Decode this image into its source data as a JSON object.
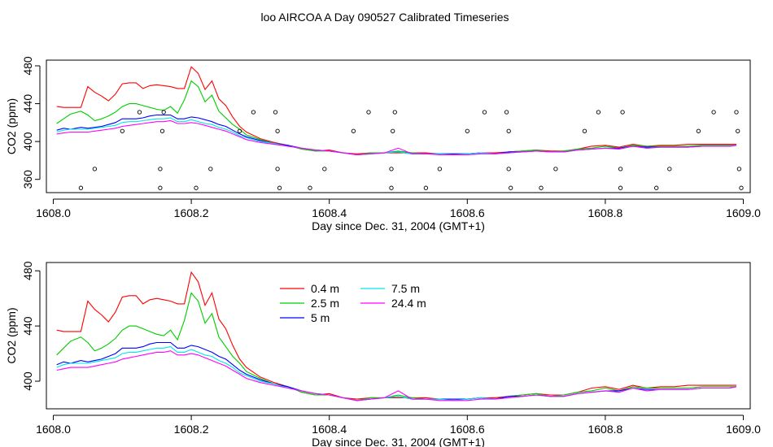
{
  "title": "loo AIRCOA A  Day 090527  Calibrated Timeseries",
  "colors": {
    "0.4 m": "#ff0000",
    "2.5 m": "#00cd00",
    "5 m": "#0000ff",
    "7.5 m": "#00e5ee",
    "24.4 m": "#ff00ff"
  },
  "chart_data": [
    {
      "type": "line",
      "xlabel": "Day since Dec. 31, 2004 (GMT+1)",
      "ylabel": "CO2 (ppm)",
      "xlim": [
        1607.99,
        1609.01
      ],
      "ylim": [
        346,
        486
      ],
      "xticks": [
        1608.0,
        1608.2,
        1608.4,
        1608.6,
        1608.8,
        1609.0
      ],
      "xtick_labels": [
        "1608.0",
        "1608.2",
        "1608.4",
        "1608.6",
        "1608.8",
        "1609.0"
      ],
      "yticks": [
        360,
        400,
        440,
        480
      ],
      "ytick_labels": [
        "360",
        "400",
        "440",
        "480"
      ],
      "legend": null,
      "series": [
        {
          "key": "0.4 m",
          "x": [
            1608.005,
            1608.015,
            1608.025,
            1608.04,
            1608.05,
            1608.06,
            1608.07,
            1608.08,
            1608.09,
            1608.1,
            1608.11,
            1608.12,
            1608.13,
            1608.14,
            1608.15,
            1608.16,
            1608.17,
            1608.18,
            1608.19,
            1608.2,
            1608.21,
            1608.22,
            1608.23,
            1608.24,
            1608.25,
            1608.26,
            1608.27,
            1608.28,
            1608.3,
            1608.32,
            1608.34,
            1608.36,
            1608.38,
            1608.4,
            1608.42,
            1608.44,
            1608.46,
            1608.48,
            1608.5,
            1608.52,
            1608.54,
            1608.56,
            1608.58,
            1608.6,
            1608.62,
            1608.64,
            1608.66,
            1608.68,
            1608.7,
            1608.72,
            1608.74,
            1608.76,
            1608.78,
            1608.8,
            1608.82,
            1608.84,
            1608.86,
            1608.88,
            1608.9,
            1608.92,
            1608.94,
            1608.96,
            1608.98,
            1608.99
          ],
          "y": [
            437,
            436,
            436,
            436,
            458,
            452,
            448,
            443,
            450,
            461,
            462,
            462,
            456,
            459,
            460,
            459,
            458,
            456,
            456,
            479,
            472,
            455,
            464,
            445,
            438,
            426,
            416,
            410,
            403,
            399,
            396,
            392,
            390,
            391,
            388,
            387,
            388,
            388,
            388,
            388,
            388,
            387,
            387,
            387,
            388,
            388,
            389,
            390,
            391,
            390,
            390,
            392,
            395,
            396,
            394,
            397,
            395,
            396,
            396,
            397,
            397,
            397,
            397,
            397
          ]
        },
        {
          "key": "2.5 m",
          "x": [
            1608.005,
            1608.015,
            1608.025,
            1608.04,
            1608.05,
            1608.06,
            1608.07,
            1608.08,
            1608.09,
            1608.1,
            1608.11,
            1608.12,
            1608.13,
            1608.14,
            1608.15,
            1608.16,
            1608.17,
            1608.18,
            1608.19,
            1608.2,
            1608.21,
            1608.22,
            1608.23,
            1608.24,
            1608.25,
            1608.26,
            1608.27,
            1608.28,
            1608.3,
            1608.32,
            1608.34,
            1608.36,
            1608.38,
            1608.4,
            1608.42,
            1608.44,
            1608.46,
            1608.48,
            1608.5,
            1608.52,
            1608.54,
            1608.56,
            1608.58,
            1608.6,
            1608.62,
            1608.64,
            1608.66,
            1608.68,
            1608.7,
            1608.72,
            1608.74,
            1608.76,
            1608.78,
            1608.8,
            1608.82,
            1608.84,
            1608.86,
            1608.88,
            1608.9,
            1608.92,
            1608.94,
            1608.96,
            1608.98,
            1608.99
          ],
          "y": [
            419,
            424,
            429,
            432,
            428,
            422,
            424,
            427,
            431,
            437,
            440,
            440,
            438,
            436,
            434,
            433,
            437,
            430,
            444,
            464,
            458,
            442,
            449,
            432,
            425,
            418,
            413,
            407,
            402,
            398,
            396,
            392,
            390,
            390,
            388,
            386,
            388,
            388,
            390,
            388,
            387,
            387,
            386,
            387,
            388,
            387,
            389,
            390,
            391,
            389,
            390,
            392,
            393,
            395,
            393,
            396,
            395,
            395,
            395,
            395,
            396,
            396,
            396,
            396
          ]
        },
        {
          "key": "5 m",
          "x": [
            1608.005,
            1608.015,
            1608.025,
            1608.04,
            1608.05,
            1608.06,
            1608.07,
            1608.08,
            1608.09,
            1608.1,
            1608.11,
            1608.12,
            1608.13,
            1608.14,
            1608.15,
            1608.16,
            1608.17,
            1608.18,
            1608.19,
            1608.2,
            1608.21,
            1608.22,
            1608.23,
            1608.24,
            1608.25,
            1608.26,
            1608.27,
            1608.28,
            1608.3,
            1608.32,
            1608.34,
            1608.36,
            1608.38,
            1608.4,
            1608.42,
            1608.44,
            1608.46,
            1608.48,
            1608.5,
            1608.52,
            1608.54,
            1608.56,
            1608.58,
            1608.6,
            1608.62,
            1608.64,
            1608.66,
            1608.68,
            1608.7,
            1608.72,
            1608.74,
            1608.76,
            1608.78,
            1608.8,
            1608.82,
            1608.84,
            1608.86,
            1608.88,
            1608.9,
            1608.92,
            1608.94,
            1608.96,
            1608.98,
            1608.99
          ],
          "y": [
            412,
            414,
            413,
            415,
            414,
            415,
            416,
            418,
            420,
            424,
            424,
            424,
            425,
            427,
            428,
            428,
            428,
            424,
            424,
            426,
            425,
            423,
            421,
            418,
            416,
            412,
            408,
            405,
            401,
            398,
            396,
            393,
            391,
            390,
            388,
            386,
            387,
            388,
            389,
            387,
            387,
            387,
            387,
            387,
            388,
            387,
            389,
            389,
            390,
            389,
            389,
            391,
            392,
            393,
            393,
            395,
            394,
            394,
            394,
            394,
            395,
            395,
            395,
            396
          ]
        },
        {
          "key": "7.5 m",
          "x": [
            1608.005,
            1608.015,
            1608.025,
            1608.04,
            1608.05,
            1608.06,
            1608.07,
            1608.08,
            1608.09,
            1608.1,
            1608.11,
            1608.12,
            1608.13,
            1608.14,
            1608.15,
            1608.16,
            1608.17,
            1608.18,
            1608.19,
            1608.2,
            1608.21,
            1608.22,
            1608.23,
            1608.24,
            1608.25,
            1608.26,
            1608.27,
            1608.28,
            1608.3,
            1608.32,
            1608.34,
            1608.36,
            1608.38,
            1608.4,
            1608.42,
            1608.44,
            1608.46,
            1608.48,
            1608.5,
            1608.52,
            1608.54,
            1608.56,
            1608.58,
            1608.6,
            1608.62,
            1608.64,
            1608.66,
            1608.68,
            1608.7,
            1608.72,
            1608.74,
            1608.76,
            1608.78,
            1608.8,
            1608.82,
            1608.84,
            1608.86,
            1608.88,
            1608.9,
            1608.92,
            1608.94,
            1608.96,
            1608.98,
            1608.99
          ],
          "y": [
            410,
            412,
            413,
            413,
            413,
            414,
            415,
            416,
            417,
            420,
            421,
            421,
            422,
            423,
            424,
            424,
            425,
            421,
            421,
            423,
            421,
            419,
            418,
            415,
            413,
            410,
            406,
            404,
            400,
            398,
            395,
            393,
            391,
            390,
            388,
            386,
            387,
            388,
            389,
            387,
            387,
            387,
            386,
            387,
            388,
            387,
            388,
            389,
            390,
            389,
            389,
            391,
            392,
            393,
            392,
            395,
            393,
            394,
            394,
            394,
            395,
            395,
            395,
            396
          ]
        },
        {
          "key": "24.4 m",
          "x": [
            1608.005,
            1608.015,
            1608.025,
            1608.04,
            1608.05,
            1608.06,
            1608.07,
            1608.08,
            1608.09,
            1608.1,
            1608.11,
            1608.12,
            1608.13,
            1608.14,
            1608.15,
            1608.16,
            1608.17,
            1608.18,
            1608.19,
            1608.2,
            1608.21,
            1608.22,
            1608.23,
            1608.24,
            1608.25,
            1608.26,
            1608.27,
            1608.28,
            1608.3,
            1608.32,
            1608.34,
            1608.36,
            1608.38,
            1608.4,
            1608.42,
            1608.44,
            1608.46,
            1608.48,
            1608.5,
            1608.52,
            1608.54,
            1608.56,
            1608.58,
            1608.6,
            1608.62,
            1608.64,
            1608.66,
            1608.68,
            1608.7,
            1608.72,
            1608.74,
            1608.76,
            1608.78,
            1608.8,
            1608.82,
            1608.84,
            1608.86,
            1608.88,
            1608.9,
            1608.92,
            1608.94,
            1608.96,
            1608.98,
            1608.99
          ],
          "y": [
            408,
            409,
            410,
            410,
            410,
            411,
            412,
            413,
            414,
            416,
            417,
            418,
            419,
            420,
            421,
            421,
            422,
            419,
            419,
            420,
            419,
            417,
            415,
            413,
            411,
            408,
            405,
            402,
            399,
            397,
            395,
            393,
            391,
            390,
            388,
            386,
            387,
            388,
            393,
            387,
            387,
            386,
            386,
            386,
            387,
            387,
            388,
            389,
            390,
            389,
            389,
            391,
            392,
            393,
            392,
            395,
            393,
            394,
            394,
            394,
            395,
            395,
            395,
            396
          ]
        }
      ],
      "points": [
        {
          "x": 1608.04,
          "y": 351
        },
        {
          "x": 1608.06,
          "y": 371
        },
        {
          "x": 1608.1,
          "y": 411
        },
        {
          "x": 1608.125,
          "y": 431
        },
        {
          "x": 1608.155,
          "y": 351
        },
        {
          "x": 1608.155,
          "y": 371
        },
        {
          "x": 1608.158,
          "y": 411
        },
        {
          "x": 1608.16,
          "y": 431
        },
        {
          "x": 1608.207,
          "y": 351
        },
        {
          "x": 1608.228,
          "y": 371
        },
        {
          "x": 1608.27,
          "y": 411
        },
        {
          "x": 1608.29,
          "y": 431
        },
        {
          "x": 1608.322,
          "y": 431
        },
        {
          "x": 1608.325,
          "y": 411
        },
        {
          "x": 1608.325,
          "y": 371
        },
        {
          "x": 1608.328,
          "y": 351
        },
        {
          "x": 1608.372,
          "y": 351
        },
        {
          "x": 1608.393,
          "y": 371
        },
        {
          "x": 1608.435,
          "y": 411
        },
        {
          "x": 1608.457,
          "y": 431
        },
        {
          "x": 1608.49,
          "y": 351
        },
        {
          "x": 1608.49,
          "y": 371
        },
        {
          "x": 1608.492,
          "y": 411
        },
        {
          "x": 1608.495,
          "y": 431
        },
        {
          "x": 1608.54,
          "y": 351
        },
        {
          "x": 1608.56,
          "y": 371
        },
        {
          "x": 1608.6,
          "y": 411
        },
        {
          "x": 1608.625,
          "y": 431
        },
        {
          "x": 1608.657,
          "y": 431
        },
        {
          "x": 1608.66,
          "y": 411
        },
        {
          "x": 1608.66,
          "y": 371
        },
        {
          "x": 1608.663,
          "y": 351
        },
        {
          "x": 1608.707,
          "y": 351
        },
        {
          "x": 1608.728,
          "y": 371
        },
        {
          "x": 1608.77,
          "y": 411
        },
        {
          "x": 1608.79,
          "y": 431
        },
        {
          "x": 1608.822,
          "y": 351
        },
        {
          "x": 1608.822,
          "y": 371
        },
        {
          "x": 1608.825,
          "y": 431
        },
        {
          "x": 1608.874,
          "y": 351
        },
        {
          "x": 1608.893,
          "y": 371
        },
        {
          "x": 1608.935,
          "y": 411
        },
        {
          "x": 1608.957,
          "y": 431
        },
        {
          "x": 1608.99,
          "y": 431
        },
        {
          "x": 1608.992,
          "y": 411
        },
        {
          "x": 1608.994,
          "y": 371
        },
        {
          "x": 1608.997,
          "y": 351
        }
      ]
    },
    {
      "type": "line",
      "xlabel": "Day since Dec. 31, 2004 (GMT+1)",
      "ylabel": "CO2 (ppm)",
      "xlim": [
        1607.99,
        1609.01
      ],
      "ylim": [
        380,
        486
      ],
      "xticks": [
        1608.0,
        1608.2,
        1608.4,
        1608.6,
        1608.8,
        1609.0
      ],
      "xtick_labels": [
        "1608.0",
        "1608.2",
        "1608.4",
        "1608.6",
        "1608.8",
        "1609.0"
      ],
      "yticks": [
        400,
        440,
        480
      ],
      "ytick_labels": [
        "400",
        "440",
        "480"
      ],
      "legend": {
        "columns": [
          [
            "0.4 m",
            "2.5 m",
            "5 m"
          ],
          [
            "7.5 m",
            "24.4 m"
          ]
        ]
      },
      "series_ref": "same as panel 1"
    }
  ]
}
